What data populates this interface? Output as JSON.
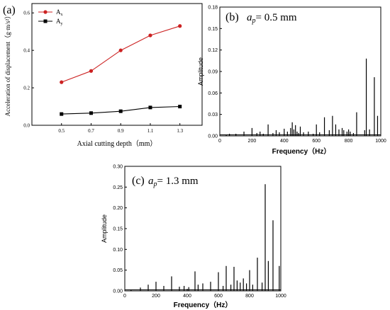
{
  "chart_data": [
    {
      "id": "a",
      "type": "line",
      "panel_label": "(a)",
      "x": [
        0.5,
        0.7,
        0.9,
        1.1,
        1.3
      ],
      "series": [
        {
          "name": "Ax",
          "name_main": "A",
          "name_sub": "x",
          "color": "#cc2222",
          "marker": "circle",
          "values": [
            0.23,
            0.29,
            0.4,
            0.48,
            0.53
          ]
        },
        {
          "name": "Ay",
          "name_main": "A",
          "name_sub": "y",
          "color": "#000000",
          "marker": "square",
          "values": [
            0.06,
            0.065,
            0.075,
            0.095,
            0.1
          ]
        }
      ],
      "xlabel": "Axial cutting depth（mm）",
      "ylabel": "Acceleration of displacement（g·m/s²）",
      "xticks": [
        "0.5",
        "0.7",
        "0.9",
        "1.1",
        "1.3"
      ],
      "yticks": [
        "0.0",
        "0.2",
        "0.4",
        "0.6"
      ],
      "xlim": [
        0.3,
        1.45
      ],
      "ylim": [
        0,
        0.65
      ],
      "legend": "top-left"
    },
    {
      "id": "b",
      "type": "bar",
      "panel_label": "(b)",
      "title_prefix": "a",
      "title_sub": "p",
      "title_rest": "= 0.5 mm",
      "xlabel": "Frequency（Hz）",
      "ylabel": "Amplitude",
      "xticks": [
        "0",
        "200",
        "400",
        "600",
        "800",
        "1000"
      ],
      "yticks": [
        "0.00",
        "0.03",
        "0.06",
        "0.09",
        "0.12",
        "0.15",
        "0.18"
      ],
      "xlim": [
        0,
        1000
      ],
      "ylim": [
        0,
        0.18
      ],
      "x": [
        40,
        60,
        100,
        150,
        200,
        230,
        250,
        270,
        300,
        330,
        350,
        370,
        400,
        420,
        440,
        450,
        460,
        470,
        480,
        490,
        500,
        520,
        550,
        580,
        600,
        620,
        650,
        680,
        700,
        720,
        740,
        760,
        770,
        790,
        800,
        810,
        830,
        850,
        900,
        910,
        930,
        960,
        980
      ],
      "values": [
        0.002,
        0.003,
        0.003,
        0.006,
        0.011,
        0.004,
        0.006,
        0.003,
        0.016,
        0.004,
        0.008,
        0.005,
        0.01,
        0.006,
        0.011,
        0.019,
        0.009,
        0.015,
        0.006,
        0.004,
        0.013,
        0.005,
        0.006,
        0.003,
        0.016,
        0.005,
        0.026,
        0.008,
        0.028,
        0.016,
        0.009,
        0.011,
        0.008,
        0.006,
        0.009,
        0.006,
        0.004,
        0.033,
        0.008,
        0.108,
        0.009,
        0.082,
        0.028
      ]
    },
    {
      "id": "c",
      "type": "bar",
      "panel_label": "(c)",
      "title_prefix": "a",
      "title_sub": "p",
      "title_rest": "= 1.3 mm",
      "xlabel": "Frequency（Hz）",
      "ylabel": "Amplitude",
      "xticks": [
        "0",
        "200",
        "400",
        "600",
        "800",
        "1000"
      ],
      "yticks": [
        "0.00",
        "0.05",
        "0.10",
        "0.15",
        "0.20",
        "0.25",
        "0.30"
      ],
      "xlim": [
        0,
        1000
      ],
      "ylim": [
        0,
        0.3
      ],
      "x": [
        40,
        100,
        150,
        200,
        250,
        300,
        350,
        380,
        410,
        450,
        470,
        500,
        550,
        600,
        630,
        650,
        680,
        700,
        720,
        740,
        760,
        780,
        800,
        820,
        850,
        880,
        900,
        920,
        950,
        990
      ],
      "values": [
        0.003,
        0.008,
        0.015,
        0.022,
        0.012,
        0.035,
        0.01,
        0.012,
        0.009,
        0.047,
        0.015,
        0.018,
        0.022,
        0.045,
        0.012,
        0.06,
        0.015,
        0.058,
        0.025,
        0.02,
        0.03,
        0.018,
        0.05,
        0.015,
        0.08,
        0.02,
        0.257,
        0.072,
        0.17,
        0.06
      ]
    }
  ]
}
